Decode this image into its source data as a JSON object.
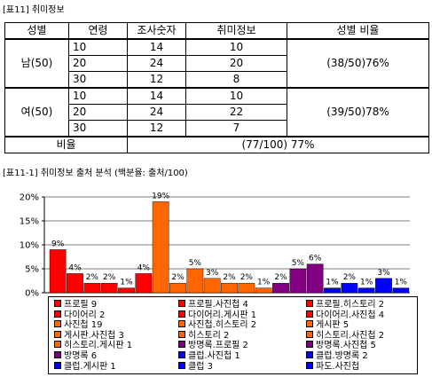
{
  "captions": {
    "table": "[표11] 취미정보",
    "chart": "[표11-1] 취미정보 출처 분석 (백분율: 출처/100)"
  },
  "table": {
    "headers": [
      "성별",
      "연령",
      "조사숫자",
      "취미정보",
      "성별 비율"
    ],
    "groups": [
      {
        "gender": "남(50)",
        "ratio": "(38/50)76%",
        "rows": [
          {
            "age": "10",
            "count": "14",
            "info": "10"
          },
          {
            "age": "20",
            "count": "24",
            "info": "20"
          },
          {
            "age": "30",
            "count": "12",
            "info": "8"
          }
        ]
      },
      {
        "gender": "여(50)",
        "ratio": "(39/50)78%",
        "rows": [
          {
            "age": "10",
            "count": "14",
            "info": "10"
          },
          {
            "age": "20",
            "count": "24",
            "info": "22"
          },
          {
            "age": "30",
            "count": "12",
            "info": "7"
          }
        ]
      }
    ],
    "total_label": "비율",
    "total_value": "(77/100) 77%"
  },
  "chart_data": {
    "type": "bar",
    "ylim": [
      0,
      20
    ],
    "yticks": [
      "0%",
      "5%",
      "10%",
      "15%",
      "20%"
    ],
    "ytick_values": [
      0,
      5,
      10,
      15,
      20
    ],
    "legend_columns": 3,
    "series": [
      {
        "name": "프로필 9",
        "value": 9,
        "label": "9%",
        "color": "#ff0000"
      },
      {
        "name": "프로필.사진첩 4",
        "value": 4,
        "label": "4%",
        "color": "#ff0000"
      },
      {
        "name": "프로필.히스토리 2",
        "value": 2,
        "label": "2%",
        "color": "#ff0000"
      },
      {
        "name": "다이어리 2",
        "value": 2,
        "label": "2%",
        "color": "#ff0000"
      },
      {
        "name": "다이어리.게시판 1",
        "value": 1,
        "label": "1%",
        "color": "#ff0000"
      },
      {
        "name": "다이어리.사진첩 4",
        "value": 4,
        "label": "4%",
        "color": "#ff0000"
      },
      {
        "name": "사진첩 19",
        "value": 19,
        "label": "19%",
        "color": "#ff6600"
      },
      {
        "name": "사진첩.히스토리 2",
        "value": 2,
        "label": "2%",
        "color": "#ff6600"
      },
      {
        "name": "게시판 5",
        "value": 5,
        "label": "5%",
        "color": "#ff6600"
      },
      {
        "name": "게시판.사진첩 3",
        "value": 3,
        "label": "3%",
        "color": "#ff6600"
      },
      {
        "name": "히스토리 2",
        "value": 2,
        "label": "2%",
        "color": "#ff6600"
      },
      {
        "name": "히스토리.사진첩 2",
        "value": 2,
        "label": "2%",
        "color": "#ff6600"
      },
      {
        "name": "히스토리.게시판 1",
        "value": 1,
        "label": "1%",
        "color": "#ff6600"
      },
      {
        "name": "방명록.프로필 2",
        "value": 2,
        "label": "2%",
        "color": "#800080"
      },
      {
        "name": "방명록.사진첩 5",
        "value": 5,
        "label": "5%",
        "color": "#800080"
      },
      {
        "name": "방명록 6",
        "value": 6,
        "label": "6%",
        "color": "#800080"
      },
      {
        "name": "클럽.사진첩 1",
        "value": 1,
        "label": "1%",
        "color": "#0000ff"
      },
      {
        "name": "클럽.방명록 2",
        "value": 2,
        "label": "2%",
        "color": "#0000ff"
      },
      {
        "name": "클럽.게시판 1",
        "value": 1,
        "label": "1%",
        "color": "#0000ff"
      },
      {
        "name": "클럽 3",
        "value": 3,
        "label": "3%",
        "color": "#0000ff"
      },
      {
        "name": "파도.사진첩",
        "value": 1,
        "label": "1%",
        "color": "#0000ff"
      }
    ]
  }
}
